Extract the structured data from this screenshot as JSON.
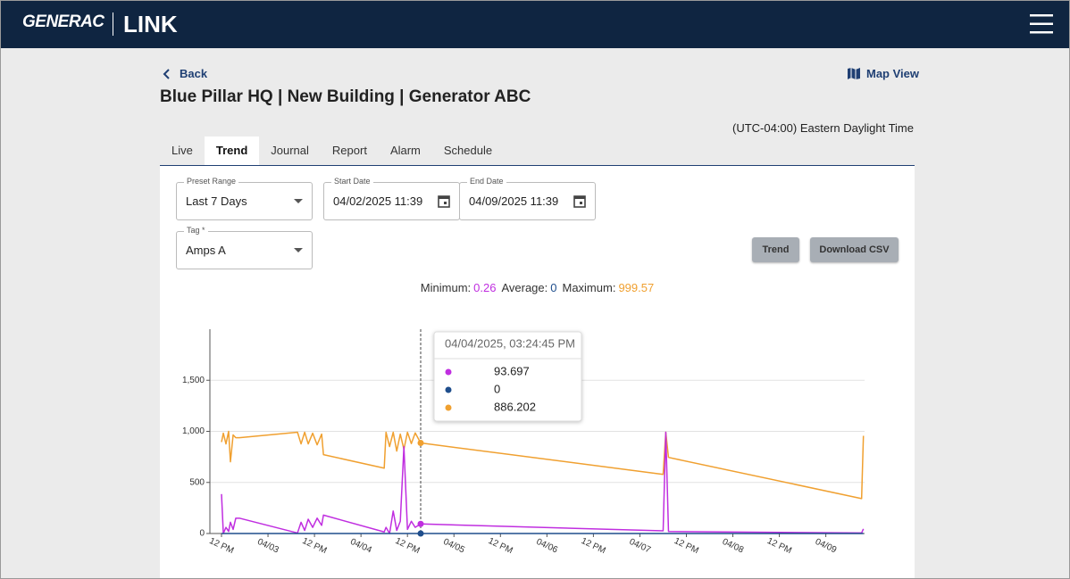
{
  "header": {
    "brand": "GENERAC",
    "product": "LINK"
  },
  "nav": {
    "back": "Back",
    "map_view": "Map View"
  },
  "title": "Blue Pillar HQ | New Building | Generator ABC",
  "timezone": "(UTC-04:00) Eastern Daylight Time",
  "tabs": [
    "Live",
    "Trend",
    "Journal",
    "Report",
    "Alarm",
    "Schedule"
  ],
  "active_tab": "Trend",
  "form": {
    "preset_range": {
      "label": "Preset Range",
      "value": "Last 7 Days"
    },
    "start_date": {
      "label": "Start Date",
      "value": "04/02/2025 11:39"
    },
    "end_date": {
      "label": "End Date",
      "value": "04/09/2025 11:39"
    },
    "tag": {
      "label": "Tag *",
      "value": "Amps A"
    }
  },
  "buttons": [
    "Trend",
    "Download CSV"
  ],
  "stats": [
    {
      "label": "Minimum:",
      "value": 0.26,
      "color": "#c02ee0"
    },
    {
      "label": "Average:",
      "value": 0,
      "color": "#1f4e8c"
    },
    {
      "label": "Maximum:",
      "value": 999.57,
      "color": "#f0a030"
    }
  ],
  "chart_data": {
    "type": "line",
    "x": [
      "2025-04-02T12:00",
      "2025-04-02T12:28",
      "2025-04-02T13:09",
      "2025-04-02T13:50",
      "2025-04-02T14:18",
      "2025-04-02T15:00",
      "2025-04-02T15:41",
      "2025-04-02T16:37",
      "2025-04-03T07:37",
      "2025-04-03T08:32",
      "2025-04-03T09:28",
      "2025-04-03T10:23",
      "2025-04-03T11:32",
      "2025-04-03T12:41",
      "2025-04-03T13:51",
      "2025-04-03T14:19",
      "2025-04-04T06:00",
      "2025-04-04T06:28",
      "2025-04-04T07:23",
      "2025-04-04T08:19",
      "2025-04-04T09:14",
      "2025-04-04T10:09",
      "2025-04-04T11:05",
      "2025-04-04T12:00",
      "2025-04-04T13:00",
      "2025-04-04T14:00",
      "2025-04-04T15:24:45",
      "2025-04-07T06:00",
      "2025-04-07T06:41",
      "2025-04-07T07:23",
      "2025-04-09T09:14",
      "2025-04-09T09:42"
    ],
    "series": [
      {
        "color": "#c02ee0",
        "values": [
          386,
          0,
          60,
          20,
          110,
          40,
          150,
          150,
          5,
          110,
          30,
          140,
          60,
          150,
          80,
          180,
          15,
          60,
          0,
          220,
          30,
          120,
          850,
          40,
          120,
          60,
          93.697,
          26,
          991,
          20,
          5,
          45
        ]
      },
      {
        "color": "#1f4e8c",
        "values": [
          0,
          0,
          0,
          0,
          0,
          0,
          0,
          0,
          0,
          0,
          0,
          0,
          0,
          0,
          0,
          0,
          0,
          0,
          0,
          0,
          0,
          0,
          0,
          0,
          0,
          0,
          0,
          0,
          0,
          0,
          0,
          0
        ]
      },
      {
        "color": "#f0a030",
        "values": [
          895,
          982,
          877,
          1000,
          702,
          965,
          938,
          938,
          991,
          877,
          991,
          877,
          982,
          868,
          973,
          772,
          640,
          991,
          851,
          991,
          807,
          973,
          824,
          991,
          880,
          985,
          886.202,
          579,
          991,
          745,
          342,
          956
        ]
      }
    ],
    "xlim": [
      "2025-04-02T09:00",
      "2025-04-09T10:00"
    ],
    "xticks": [
      {
        "value": "2025-04-02T12:00",
        "label": "12 PM"
      },
      {
        "value": "2025-04-03T00:00",
        "label": "04/03"
      },
      {
        "value": "2025-04-03T12:00",
        "label": "12 PM"
      },
      {
        "value": "2025-04-04T00:00",
        "label": "04/04"
      },
      {
        "value": "2025-04-04T12:00",
        "label": "12 PM"
      },
      {
        "value": "2025-04-05T00:00",
        "label": "04/05"
      },
      {
        "value": "2025-04-05T12:00",
        "label": "12 PM"
      },
      {
        "value": "2025-04-06T00:00",
        "label": "04/06"
      },
      {
        "value": "2025-04-06T12:00",
        "label": "12 PM"
      },
      {
        "value": "2025-04-07T00:00",
        "label": "04/07"
      },
      {
        "value": "2025-04-07T12:00",
        "label": "12 PM"
      },
      {
        "value": "2025-04-08T00:00",
        "label": "04/08"
      },
      {
        "value": "2025-04-08T12:00",
        "label": "12 PM"
      },
      {
        "value": "2025-04-09T00:00",
        "label": "04/09"
      }
    ],
    "ylim": [
      0,
      2000
    ],
    "yticks": [
      0,
      500,
      {
        "value": 1000,
        "label": "1,000"
      },
      {
        "value": 1500,
        "label": "1,500"
      }
    ],
    "grid": true,
    "tooltip": {
      "label": "04/04/2025, 03:24:45 PM",
      "x": "2025-04-04T15:24:45"
    }
  }
}
